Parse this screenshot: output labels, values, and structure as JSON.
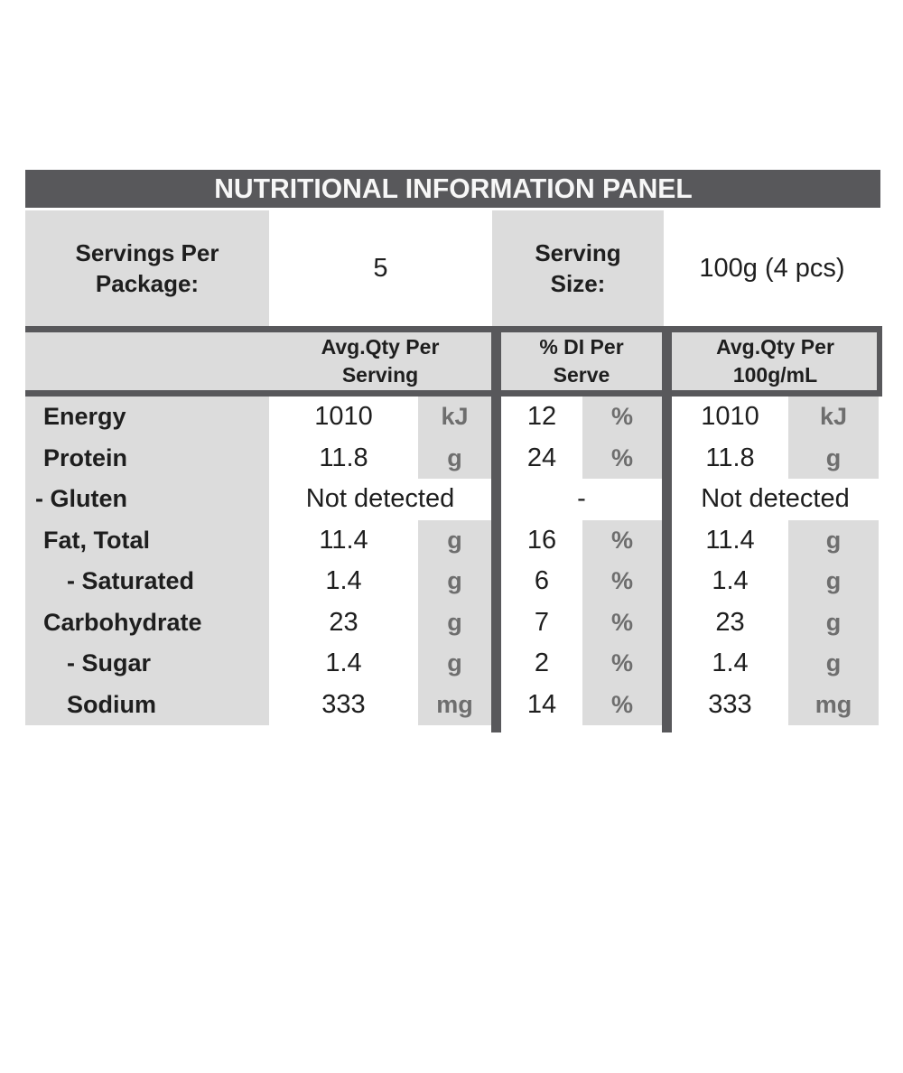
{
  "title": "NUTRITIONAL INFORMATION PANEL",
  "serving_info": {
    "servings_label": "Servings Per\nPackage:",
    "servings_value": "5",
    "size_label": "Serving\nSize:",
    "size_value": "100g (4 pcs)"
  },
  "column_headers": {
    "per_serving": "Avg.Qty Per\nServing",
    "di_per_serve": "% DI Per\nServe",
    "per_100g": "Avg.Qty Per\n100g/mL"
  },
  "rows": [
    {
      "name": "Energy",
      "serve_value": "1010",
      "serve_unit": "kJ",
      "di_value": "12",
      "di_unit": "%",
      "per100_value": "1010",
      "per100_unit": "kJ"
    },
    {
      "name": "Protein",
      "serve_value": "11.8",
      "serve_unit": "g",
      "di_value": "24",
      "di_unit": "%",
      "per100_value": "11.8",
      "per100_unit": "g"
    },
    {
      "name": "- Gluten",
      "serve_value": "Not detected",
      "di_value": "-",
      "per100_value": "Not detected"
    },
    {
      "name": "Fat, Total",
      "serve_value": "11.4",
      "serve_unit": "g",
      "di_value": "16",
      "di_unit": "%",
      "per100_value": "11.4",
      "per100_unit": "g"
    },
    {
      "name": "- Saturated",
      "serve_value": "1.4",
      "serve_unit": "g",
      "di_value": "6",
      "di_unit": "%",
      "per100_value": "1.4",
      "per100_unit": "g"
    },
    {
      "name": "Carbohydrate",
      "serve_value": "23",
      "serve_unit": "g",
      "di_value": "7",
      "di_unit": "%",
      "per100_value": "23",
      "per100_unit": "g"
    },
    {
      "name": "- Sugar",
      "serve_value": "1.4",
      "serve_unit": "g",
      "di_value": "2",
      "di_unit": "%",
      "per100_value": "1.4",
      "per100_unit": "g"
    },
    {
      "name": "Sodium",
      "serve_value": "333",
      "serve_unit": "mg",
      "di_value": "14",
      "di_unit": "%",
      "per100_value": "333",
      "per100_unit": "mg"
    }
  ],
  "colors": {
    "header_bg": "#58585b",
    "cell_gray": "#dcdcdc",
    "unit_text": "#6e6e6e",
    "text": "#1e1e1e"
  }
}
